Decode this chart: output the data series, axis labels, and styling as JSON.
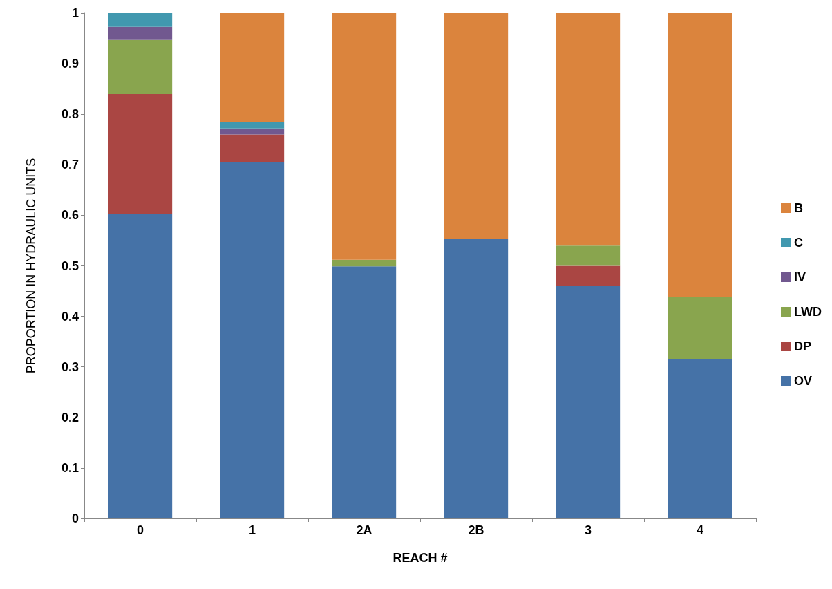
{
  "chart_data": {
    "type": "bar",
    "stacked": true,
    "xlabel": "REACH #",
    "ylabel": "PROPORTION IN HYDRAULIC UNITS",
    "categories": [
      "0",
      "1",
      "2A",
      "2B",
      "3",
      "4"
    ],
    "series": [
      {
        "name": "OV",
        "color": "#4572a7",
        "values": [
          0.603,
          0.706,
          0.499,
          0.553,
          0.46,
          0.316
        ]
      },
      {
        "name": "DP",
        "color": "#aa4643",
        "values": [
          0.237,
          0.054,
          0,
          0,
          0.04,
          0
        ]
      },
      {
        "name": "LWD",
        "color": "#89a54e",
        "values": [
          0.107,
          0,
          0.013,
          0,
          0.04,
          0.122
        ]
      },
      {
        "name": "IV",
        "color": "#71588f",
        "values": [
          0.026,
          0.012,
          0,
          0,
          0,
          0
        ]
      },
      {
        "name": "C",
        "color": "#4198af",
        "values": [
          0.027,
          0.013,
          0,
          0,
          0,
          0
        ]
      },
      {
        "name": "B",
        "color": "#db843d",
        "values": [
          0,
          0.215,
          0.488,
          0.447,
          0.46,
          0.562
        ]
      }
    ],
    "ylim": [
      0,
      1
    ],
    "yticks": [
      0,
      0.1,
      0.2,
      0.3,
      0.4,
      0.5,
      0.6,
      0.7,
      0.8,
      0.9,
      1
    ],
    "grid": false,
    "legend": "right"
  }
}
